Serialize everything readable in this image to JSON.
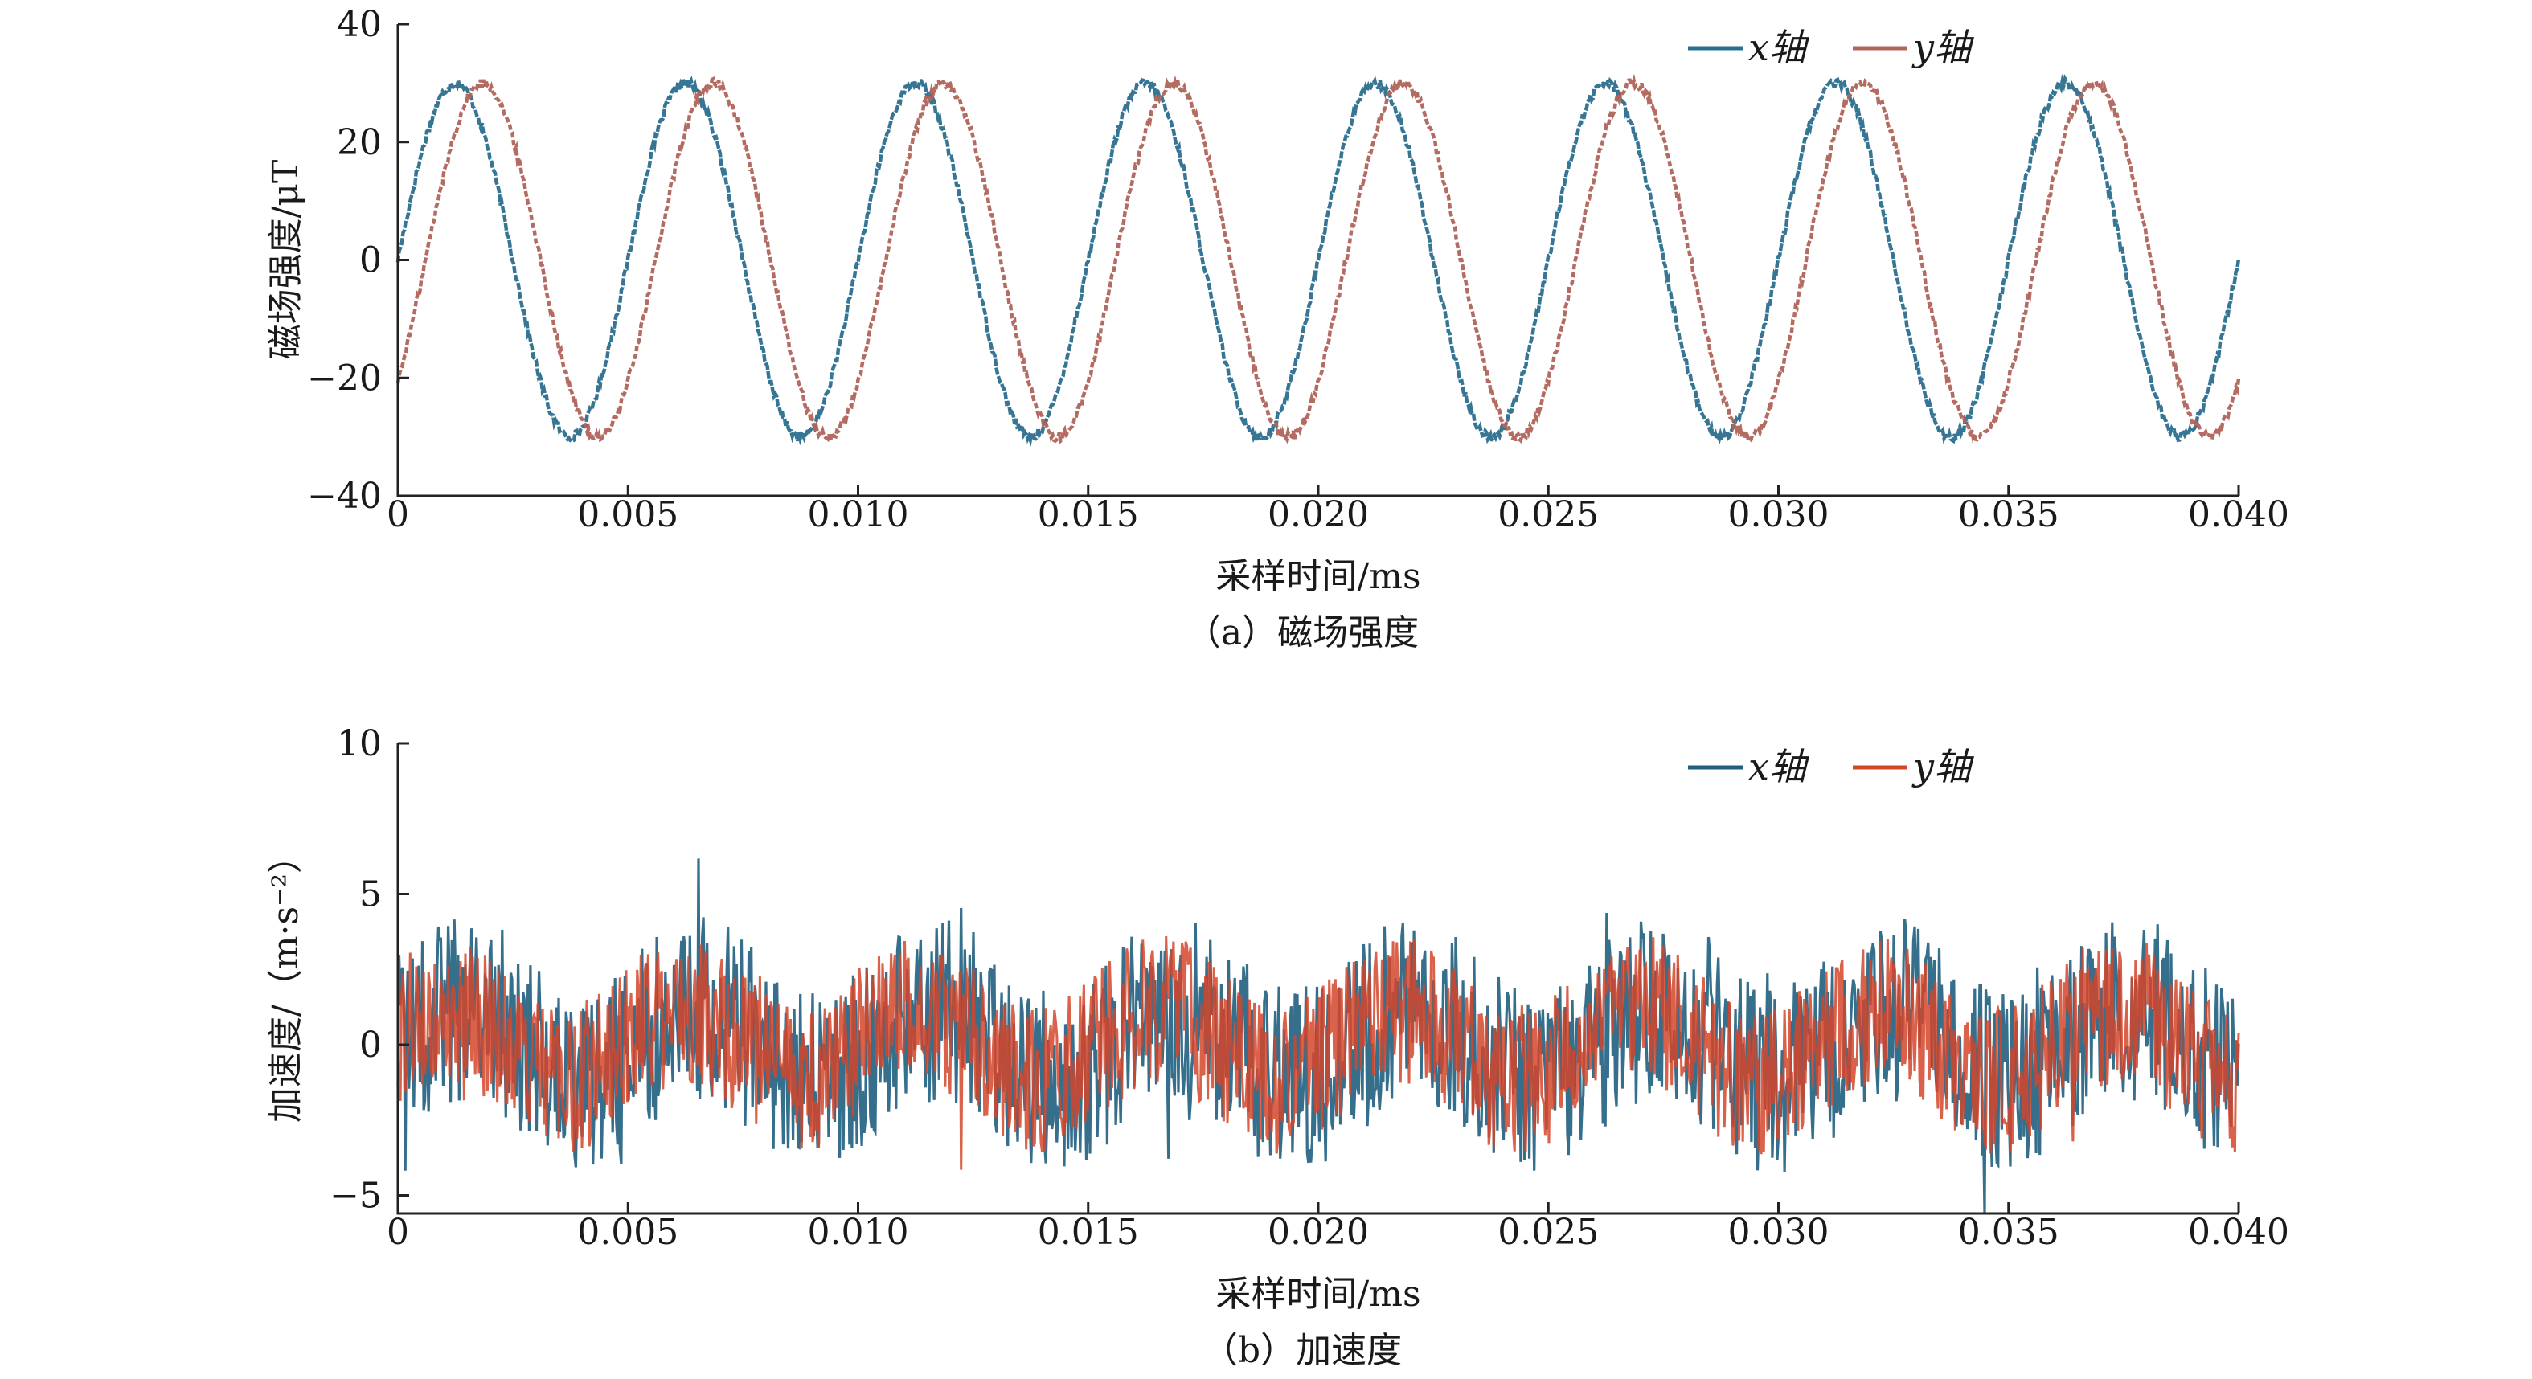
{
  "chart_data": [
    {
      "type": "line",
      "caption": "（a）磁场强度",
      "xlabel": "采样时间/ms",
      "ylabel": "磁场强度/μT",
      "xlim": [
        0,
        0.04
      ],
      "ylim": [
        -40,
        40
      ],
      "x_ticks": [
        "0",
        "0.005",
        "0.010",
        "0.015",
        "0.020",
        "0.025",
        "0.030",
        "0.035",
        "0.040"
      ],
      "y_ticks": [
        "40",
        "20",
        "0",
        "−20",
        "−40"
      ],
      "legend": {
        "position": "top-right"
      },
      "series": [
        {
          "name": "x轴",
          "color": "#2b6f8e",
          "amplitude": 30,
          "period_ms": 0.005,
          "phase_ms": 0,
          "start_value": 0,
          "end_value": 0
        },
        {
          "name": "y轴",
          "color": "#b0645a",
          "amplitude": 30,
          "period_ms": 0.005,
          "phase_ms": 0.0006,
          "start_value": -19,
          "end_value": -23
        }
      ]
    },
    {
      "type": "line",
      "caption": "（b）加速度",
      "xlabel": "采样时间/ms",
      "ylabel": "加速度/（m·s⁻²）",
      "xlim": [
        0,
        0.04
      ],
      "ylim": [
        -5.6,
        10
      ],
      "x_ticks": [
        "0",
        "0.005",
        "0.010",
        "0.015",
        "0.020",
        "0.025",
        "0.030",
        "0.035",
        "0.040"
      ],
      "y_ticks": [
        "10",
        "5",
        "0",
        "−5"
      ],
      "legend": {
        "position": "top-right"
      },
      "series": [
        {
          "name": "x轴",
          "color": "#1f5f80",
          "mean": 0,
          "range": [
            -5.6,
            7
          ]
        },
        {
          "name": "y轴",
          "color": "#d4452a",
          "mean": 0,
          "range": [
            -5,
            6
          ]
        }
      ]
    }
  ]
}
